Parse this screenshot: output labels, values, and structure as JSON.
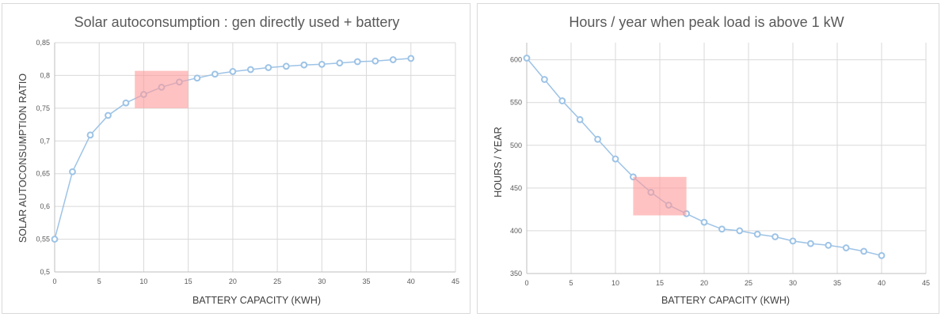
{
  "chart_data": [
    {
      "type": "line",
      "title": "Solar autoconsumption : gen directly used + battery",
      "xlabel": "BATTERY CAPACITY (KWH)",
      "ylabel": "SOLAR AUTOCONSUMPTION RATIO",
      "xlim": [
        0,
        45
      ],
      "ylim": [
        0.5,
        0.85
      ],
      "x_ticks": [
        "0",
        "5",
        "10",
        "15",
        "20",
        "25",
        "30",
        "35",
        "40",
        "45"
      ],
      "y_ticks": [
        "0,5",
        "0,55",
        "0,6",
        "0,65",
        "0,7",
        "0,75",
        "0,8",
        "0,85"
      ],
      "grid": true,
      "line_color": "#9dc3e6",
      "highlight": {
        "x": [
          9,
          15
        ],
        "y": [
          0.75,
          0.807
        ],
        "color": "#ff9999"
      },
      "series": [
        {
          "x": [
            0,
            2,
            4,
            6,
            8,
            10,
            12,
            14,
            16,
            18,
            20,
            22,
            24,
            26,
            28,
            30,
            32,
            34,
            36,
            38,
            40
          ],
          "values": [
            0.55,
            0.653,
            0.709,
            0.739,
            0.758,
            0.771,
            0.782,
            0.79,
            0.796,
            0.802,
            0.806,
            0.809,
            0.812,
            0.814,
            0.816,
            0.817,
            0.819,
            0.821,
            0.822,
            0.824,
            0.826
          ]
        }
      ]
    },
    {
      "type": "line",
      "title": "Hours / year when peak load is above 1 kW",
      "xlabel": "BATTERY CAPACITY (KWH)",
      "ylabel": "HOURS / YEAR",
      "xlim": [
        0,
        45
      ],
      "ylim": [
        350,
        620
      ],
      "x_ticks": [
        "0",
        "5",
        "10",
        "15",
        "20",
        "25",
        "30",
        "35",
        "40",
        "45"
      ],
      "y_ticks": [
        "350",
        "400",
        "450",
        "500",
        "550",
        "600"
      ],
      "grid": true,
      "line_color": "#9dc3e6",
      "highlight": {
        "x": [
          12,
          18
        ],
        "y": [
          418,
          463
        ],
        "color": "#ff9999"
      },
      "series": [
        {
          "x": [
            0,
            2,
            4,
            6,
            8,
            10,
            12,
            14,
            16,
            18,
            20,
            22,
            24,
            26,
            28,
            30,
            32,
            34,
            36,
            38,
            40
          ],
          "values": [
            602,
            577,
            552,
            530,
            507,
            484,
            463,
            445,
            430,
            420,
            410,
            402,
            400,
            396,
            393,
            388,
            385,
            383,
            380,
            376,
            371
          ]
        }
      ]
    }
  ]
}
